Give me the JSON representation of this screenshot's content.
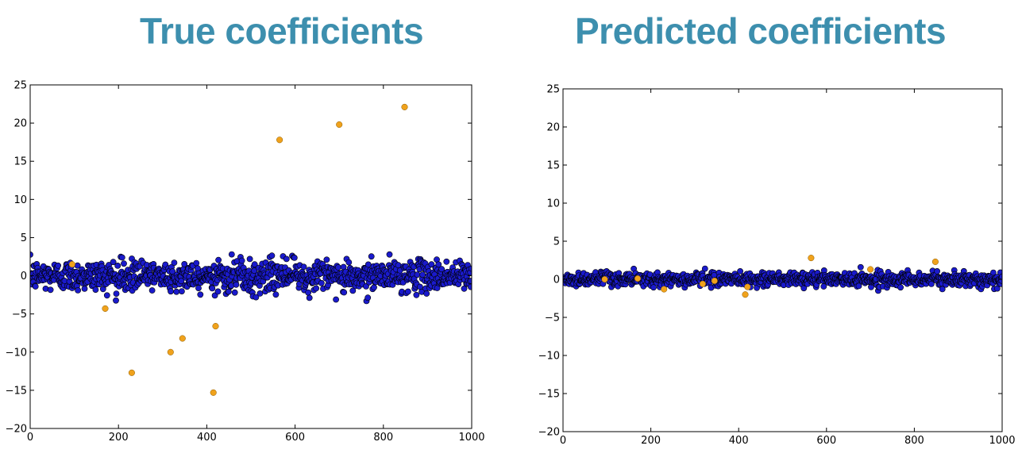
{
  "titles": {
    "left": "True coefficients",
    "right": "Predicted coefficients"
  },
  "colors": {
    "bulk": "#1a1acc",
    "highlight": "#f0a21c",
    "edge": "#000000"
  },
  "chart_data": [
    {
      "type": "scatter",
      "title": "True coefficients",
      "xlabel": "",
      "ylabel": "",
      "xlim": [
        0,
        1000
      ],
      "ylim": [
        -20,
        25
      ],
      "xticks": [
        0,
        200,
        400,
        600,
        800,
        1000
      ],
      "yticks": [
        -20,
        -15,
        -10,
        -5,
        0,
        5,
        10,
        15,
        20,
        25
      ],
      "grid": false,
      "bulk_series": {
        "n_points": 1000,
        "x_range": [
          0,
          1000
        ],
        "spread_sd": 1.0,
        "range_approx": [
          -3.5,
          3.7
        ]
      },
      "highlight_points": [
        {
          "x": 95,
          "y": 1.5
        },
        {
          "x": 170,
          "y": -4.3
        },
        {
          "x": 230,
          "y": -12.7
        },
        {
          "x": 318,
          "y": -10.0
        },
        {
          "x": 345,
          "y": -8.2
        },
        {
          "x": 415,
          "y": -15.3
        },
        {
          "x": 420,
          "y": -6.6
        },
        {
          "x": 565,
          "y": 17.8
        },
        {
          "x": 700,
          "y": 19.8
        },
        {
          "x": 848,
          "y": 22.1
        }
      ]
    },
    {
      "type": "scatter",
      "title": "Predicted coefficients",
      "xlabel": "",
      "ylabel": "",
      "xlim": [
        0,
        1000
      ],
      "ylim": [
        -20,
        25
      ],
      "xticks": [
        0,
        200,
        400,
        600,
        800,
        1000
      ],
      "yticks": [
        -20,
        -15,
        -10,
        -5,
        0,
        5,
        10,
        15,
        20,
        25
      ],
      "grid": false,
      "bulk_series": {
        "n_points": 1000,
        "x_range": [
          0,
          1000
        ],
        "spread_sd": 0.45,
        "range_approx": [
          -1.7,
          1.6
        ]
      },
      "highlight_points": [
        {
          "x": 95,
          "y": 0.0
        },
        {
          "x": 170,
          "y": 0.1
        },
        {
          "x": 230,
          "y": -1.3
        },
        {
          "x": 318,
          "y": -0.6
        },
        {
          "x": 345,
          "y": -0.2
        },
        {
          "x": 415,
          "y": -2.0
        },
        {
          "x": 420,
          "y": -1.0
        },
        {
          "x": 565,
          "y": 2.8
        },
        {
          "x": 700,
          "y": 1.3
        },
        {
          "x": 848,
          "y": 2.3
        }
      ]
    }
  ]
}
